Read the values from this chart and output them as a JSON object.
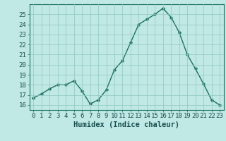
{
  "x": [
    0,
    1,
    2,
    3,
    4,
    5,
    6,
    7,
    8,
    9,
    10,
    11,
    12,
    13,
    14,
    15,
    16,
    17,
    18,
    19,
    20,
    21,
    22,
    23
  ],
  "y": [
    16.7,
    17.1,
    17.6,
    18.0,
    18.0,
    18.4,
    17.4,
    16.1,
    16.5,
    17.5,
    19.5,
    20.4,
    22.2,
    24.0,
    24.5,
    25.0,
    25.6,
    24.7,
    23.2,
    21.0,
    19.6,
    18.1,
    16.5,
    16.0
  ],
  "line_color": "#1a7060",
  "marker_color": "#1a7060",
  "bg_color": "#c0e8e4",
  "grid_color": "#90c8c4",
  "xlabel": "Humidex (Indice chaleur)",
  "ylim": [
    15.5,
    26
  ],
  "xlim": [
    -0.5,
    23.5
  ],
  "yticks": [
    16,
    17,
    18,
    19,
    20,
    21,
    22,
    23,
    24,
    25
  ],
  "xticks": [
    0,
    1,
    2,
    3,
    4,
    5,
    6,
    7,
    8,
    9,
    10,
    11,
    12,
    13,
    14,
    15,
    16,
    17,
    18,
    19,
    20,
    21,
    22,
    23
  ],
  "tick_label_fontsize": 6.5,
  "xlabel_fontsize": 7.5
}
